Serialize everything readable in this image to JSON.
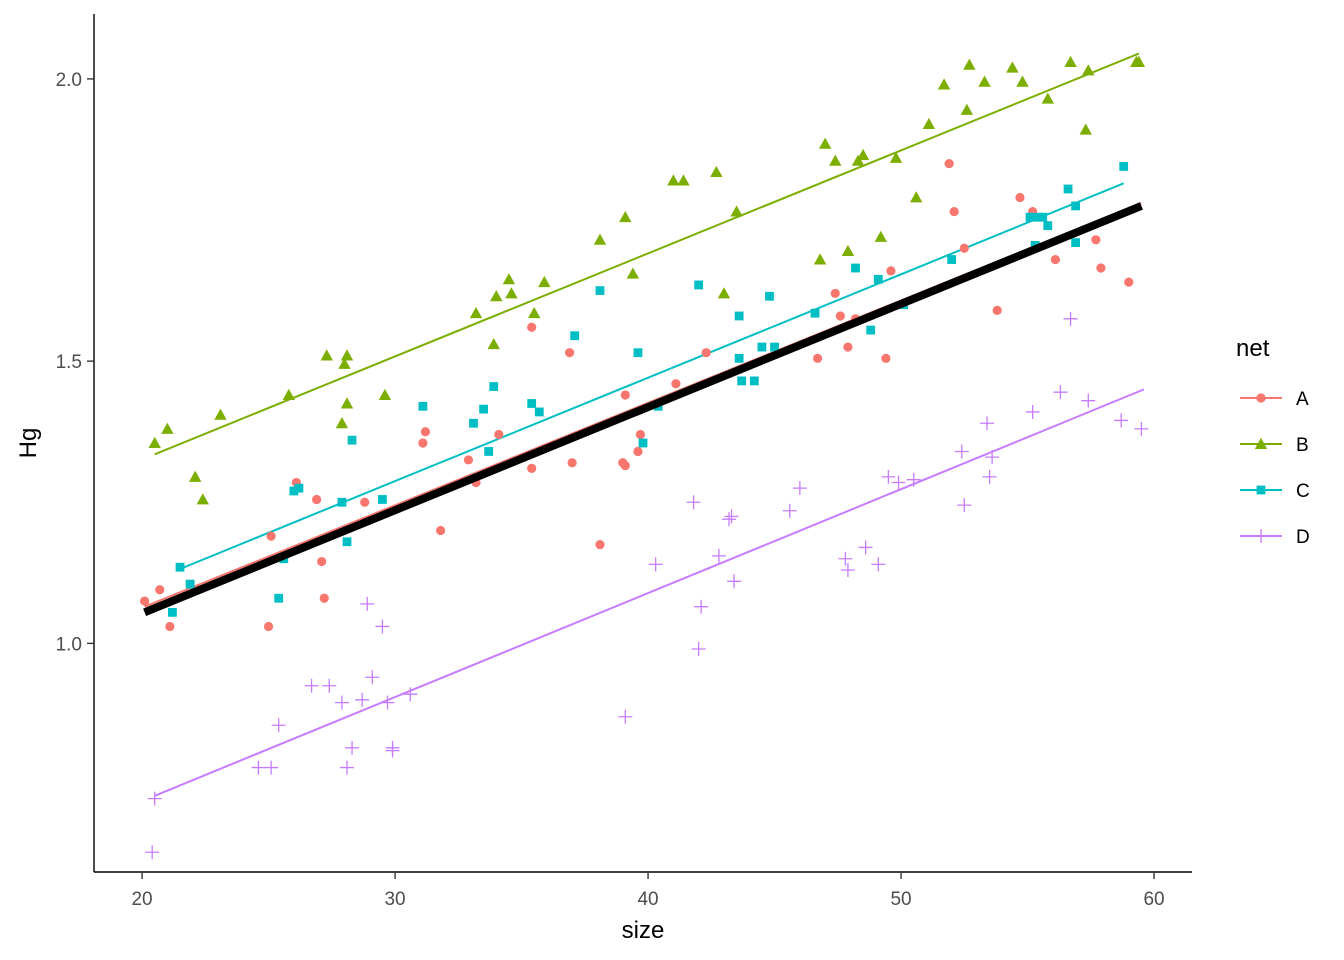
{
  "chart_data": {
    "type": "scatter",
    "title": "",
    "xlabel": "size",
    "ylabel": "Hg",
    "xlim": [
      18.1,
      61.5
    ],
    "ylim": [
      0.595,
      2.115
    ],
    "xticks": [
      20,
      30,
      40,
      50,
      60
    ],
    "yticks": [
      1.0,
      1.5,
      2.0
    ],
    "xtick_labels": [
      "20",
      "30",
      "40",
      "50",
      "60"
    ],
    "ytick_labels": [
      "1.0",
      "1.5",
      "2.0"
    ],
    "grid": false,
    "legend": {
      "title": "net",
      "position": "right"
    },
    "overall_fit": {
      "color": "#000000",
      "x": [
        20.1,
        59.5
      ],
      "y": [
        1.055,
        1.775
      ]
    },
    "series": [
      {
        "name": "A",
        "color": "#F8766D",
        "shape": "circle",
        "fit": {
          "x": [
            20.1,
            59.5
          ],
          "y": [
            1.065,
            1.78
          ]
        },
        "points": [
          [
            20.1,
            1.075
          ],
          [
            20.7,
            1.095
          ],
          [
            21.1,
            1.03
          ],
          [
            25.0,
            1.03
          ],
          [
            25.1,
            1.19
          ],
          [
            26.1,
            1.285
          ],
          [
            26.9,
            1.255
          ],
          [
            27.1,
            1.145
          ],
          [
            27.2,
            1.08
          ],
          [
            28.8,
            1.25
          ],
          [
            31.1,
            1.355
          ],
          [
            31.2,
            1.375
          ],
          [
            31.8,
            1.2
          ],
          [
            32.9,
            1.325
          ],
          [
            33.2,
            1.285
          ],
          [
            34.1,
            1.37
          ],
          [
            35.4,
            1.56
          ],
          [
            35.4,
            1.31
          ],
          [
            36.9,
            1.515
          ],
          [
            37.0,
            1.32
          ],
          [
            38.1,
            1.175
          ],
          [
            39.0,
            1.32
          ],
          [
            39.1,
            1.315
          ],
          [
            39.1,
            1.44
          ],
          [
            39.6,
            1.34
          ],
          [
            39.7,
            1.37
          ],
          [
            41.1,
            1.46
          ],
          [
            42.3,
            1.515
          ],
          [
            46.7,
            1.505
          ],
          [
            47.4,
            1.62
          ],
          [
            47.6,
            1.58
          ],
          [
            47.9,
            1.525
          ],
          [
            48.2,
            1.575
          ],
          [
            49.4,
            1.505
          ],
          [
            49.6,
            1.66
          ],
          [
            51.9,
            1.85
          ],
          [
            52.1,
            1.765
          ],
          [
            52.5,
            1.7
          ],
          [
            53.8,
            1.59
          ],
          [
            54.7,
            1.79
          ],
          [
            55.2,
            1.765
          ],
          [
            56.1,
            1.68
          ],
          [
            57.7,
            1.715
          ],
          [
            57.9,
            1.665
          ],
          [
            59.0,
            1.64
          ]
        ]
      },
      {
        "name": "B",
        "color": "#7CAE00",
        "shape": "triangle",
        "fit": {
          "x": [
            20.5,
            59.4
          ],
          "y": [
            1.335,
            2.045
          ]
        },
        "points": [
          [
            20.5,
            1.355
          ],
          [
            21.0,
            1.38
          ],
          [
            22.1,
            1.295
          ],
          [
            22.4,
            1.255
          ],
          [
            23.1,
            1.405
          ],
          [
            25.8,
            1.44
          ],
          [
            27.3,
            1.51
          ],
          [
            27.9,
            1.39
          ],
          [
            28.0,
            1.495
          ],
          [
            28.1,
            1.425
          ],
          [
            28.1,
            1.51
          ],
          [
            29.6,
            1.44
          ],
          [
            33.2,
            1.585
          ],
          [
            33.9,
            1.53
          ],
          [
            34.0,
            1.615
          ],
          [
            34.5,
            1.645
          ],
          [
            34.6,
            1.62
          ],
          [
            35.5,
            1.585
          ],
          [
            35.9,
            1.64
          ],
          [
            38.1,
            1.715
          ],
          [
            39.1,
            1.755
          ],
          [
            39.4,
            1.655
          ],
          [
            41.0,
            1.82
          ],
          [
            41.4,
            1.82
          ],
          [
            42.7,
            1.835
          ],
          [
            43.0,
            1.62
          ],
          [
            43.5,
            1.765
          ],
          [
            46.8,
            1.68
          ],
          [
            47.0,
            1.885
          ],
          [
            47.4,
            1.855
          ],
          [
            47.9,
            1.695
          ],
          [
            48.3,
            1.855
          ],
          [
            48.5,
            1.865
          ],
          [
            49.2,
            1.72
          ],
          [
            49.8,
            1.86
          ],
          [
            50.6,
            1.79
          ],
          [
            51.1,
            1.92
          ],
          [
            51.7,
            1.99
          ],
          [
            52.6,
            1.945
          ],
          [
            52.7,
            2.025
          ],
          [
            53.3,
            1.995
          ],
          [
            54.4,
            2.02
          ],
          [
            54.8,
            1.995
          ],
          [
            55.8,
            1.965
          ],
          [
            56.7,
            2.03
          ],
          [
            57.3,
            1.91
          ],
          [
            57.4,
            2.015
          ],
          [
            59.3,
            2.03
          ],
          [
            59.4,
            2.03
          ]
        ]
      },
      {
        "name": "C",
        "color": "#00BFC4",
        "shape": "square",
        "fit": {
          "x": [
            21.4,
            58.8
          ],
          "y": [
            1.13,
            1.815
          ]
        },
        "points": [
          [
            21.2,
            1.055
          ],
          [
            21.5,
            1.135
          ],
          [
            21.9,
            1.105
          ],
          [
            25.4,
            1.08
          ],
          [
            25.6,
            1.15
          ],
          [
            26.0,
            1.27
          ],
          [
            26.2,
            1.275
          ],
          [
            27.9,
            1.25
          ],
          [
            28.1,
            1.18
          ],
          [
            28.3,
            1.36
          ],
          [
            29.5,
            1.255
          ],
          [
            31.1,
            1.42
          ],
          [
            33.1,
            1.39
          ],
          [
            33.5,
            1.415
          ],
          [
            33.7,
            1.34
          ],
          [
            33.9,
            1.455
          ],
          [
            35.4,
            1.425
          ],
          [
            35.7,
            1.41
          ],
          [
            37.1,
            1.545
          ],
          [
            39.6,
            1.515
          ],
          [
            38.1,
            1.625
          ],
          [
            39.8,
            1.355
          ],
          [
            40.4,
            1.42
          ],
          [
            42.0,
            1.635
          ],
          [
            43.6,
            1.58
          ],
          [
            43.7,
            1.465
          ],
          [
            43.6,
            1.505
          ],
          [
            44.2,
            1.465
          ],
          [
            44.5,
            1.525
          ],
          [
            44.8,
            1.615
          ],
          [
            45.0,
            1.525
          ],
          [
            46.6,
            1.585
          ],
          [
            48.2,
            1.665
          ],
          [
            48.8,
            1.555
          ],
          [
            49.1,
            1.645
          ],
          [
            50.1,
            1.6
          ],
          [
            52.0,
            1.68
          ],
          [
            55.1,
            1.755
          ],
          [
            55.3,
            1.705
          ],
          [
            55.4,
            1.755
          ],
          [
            55.6,
            1.755
          ],
          [
            55.8,
            1.74
          ],
          [
            56.6,
            1.805
          ],
          [
            56.9,
            1.71
          ],
          [
            56.9,
            1.775
          ],
          [
            58.8,
            1.845
          ]
        ]
      },
      {
        "name": "D",
        "color": "#C77CFF",
        "shape": "plus",
        "fit": {
          "x": [
            20.5,
            59.6
          ],
          "y": [
            0.73,
            1.45
          ]
        },
        "points": [
          [
            20.4,
            0.63
          ],
          [
            20.5,
            0.725
          ],
          [
            24.6,
            0.78
          ],
          [
            25.1,
            0.78
          ],
          [
            25.4,
            0.855
          ],
          [
            26.7,
            0.925
          ],
          [
            27.4,
            0.925
          ],
          [
            27.9,
            0.895
          ],
          [
            28.1,
            0.78
          ],
          [
            28.3,
            0.815
          ],
          [
            28.7,
            0.9
          ],
          [
            28.9,
            1.07
          ],
          [
            29.1,
            0.94
          ],
          [
            29.5,
            1.03
          ],
          [
            29.7,
            0.895
          ],
          [
            29.9,
            0.81
          ],
          [
            29.9,
            0.815
          ],
          [
            30.6,
            0.91
          ],
          [
            39.1,
            0.87
          ],
          [
            40.3,
            1.14
          ],
          [
            41.8,
            1.25
          ],
          [
            42.0,
            0.99
          ],
          [
            42.1,
            1.065
          ],
          [
            42.8,
            1.155
          ],
          [
            43.2,
            1.22
          ],
          [
            43.3,
            1.225
          ],
          [
            43.4,
            1.11
          ],
          [
            45.6,
            1.235
          ],
          [
            46.0,
            1.275
          ],
          [
            47.8,
            1.15
          ],
          [
            47.9,
            1.13
          ],
          [
            48.6,
            1.17
          ],
          [
            49.1,
            1.14
          ],
          [
            49.5,
            1.295
          ],
          [
            49.9,
            1.285
          ],
          [
            50.5,
            1.29
          ],
          [
            52.4,
            1.34
          ],
          [
            52.5,
            1.245
          ],
          [
            53.4,
            1.39
          ],
          [
            53.5,
            1.295
          ],
          [
            53.6,
            1.33
          ],
          [
            55.2,
            1.41
          ],
          [
            56.3,
            1.445
          ],
          [
            56.7,
            1.575
          ],
          [
            57.4,
            1.43
          ],
          [
            58.7,
            1.395
          ],
          [
            59.5,
            1.38
          ]
        ]
      }
    ]
  }
}
